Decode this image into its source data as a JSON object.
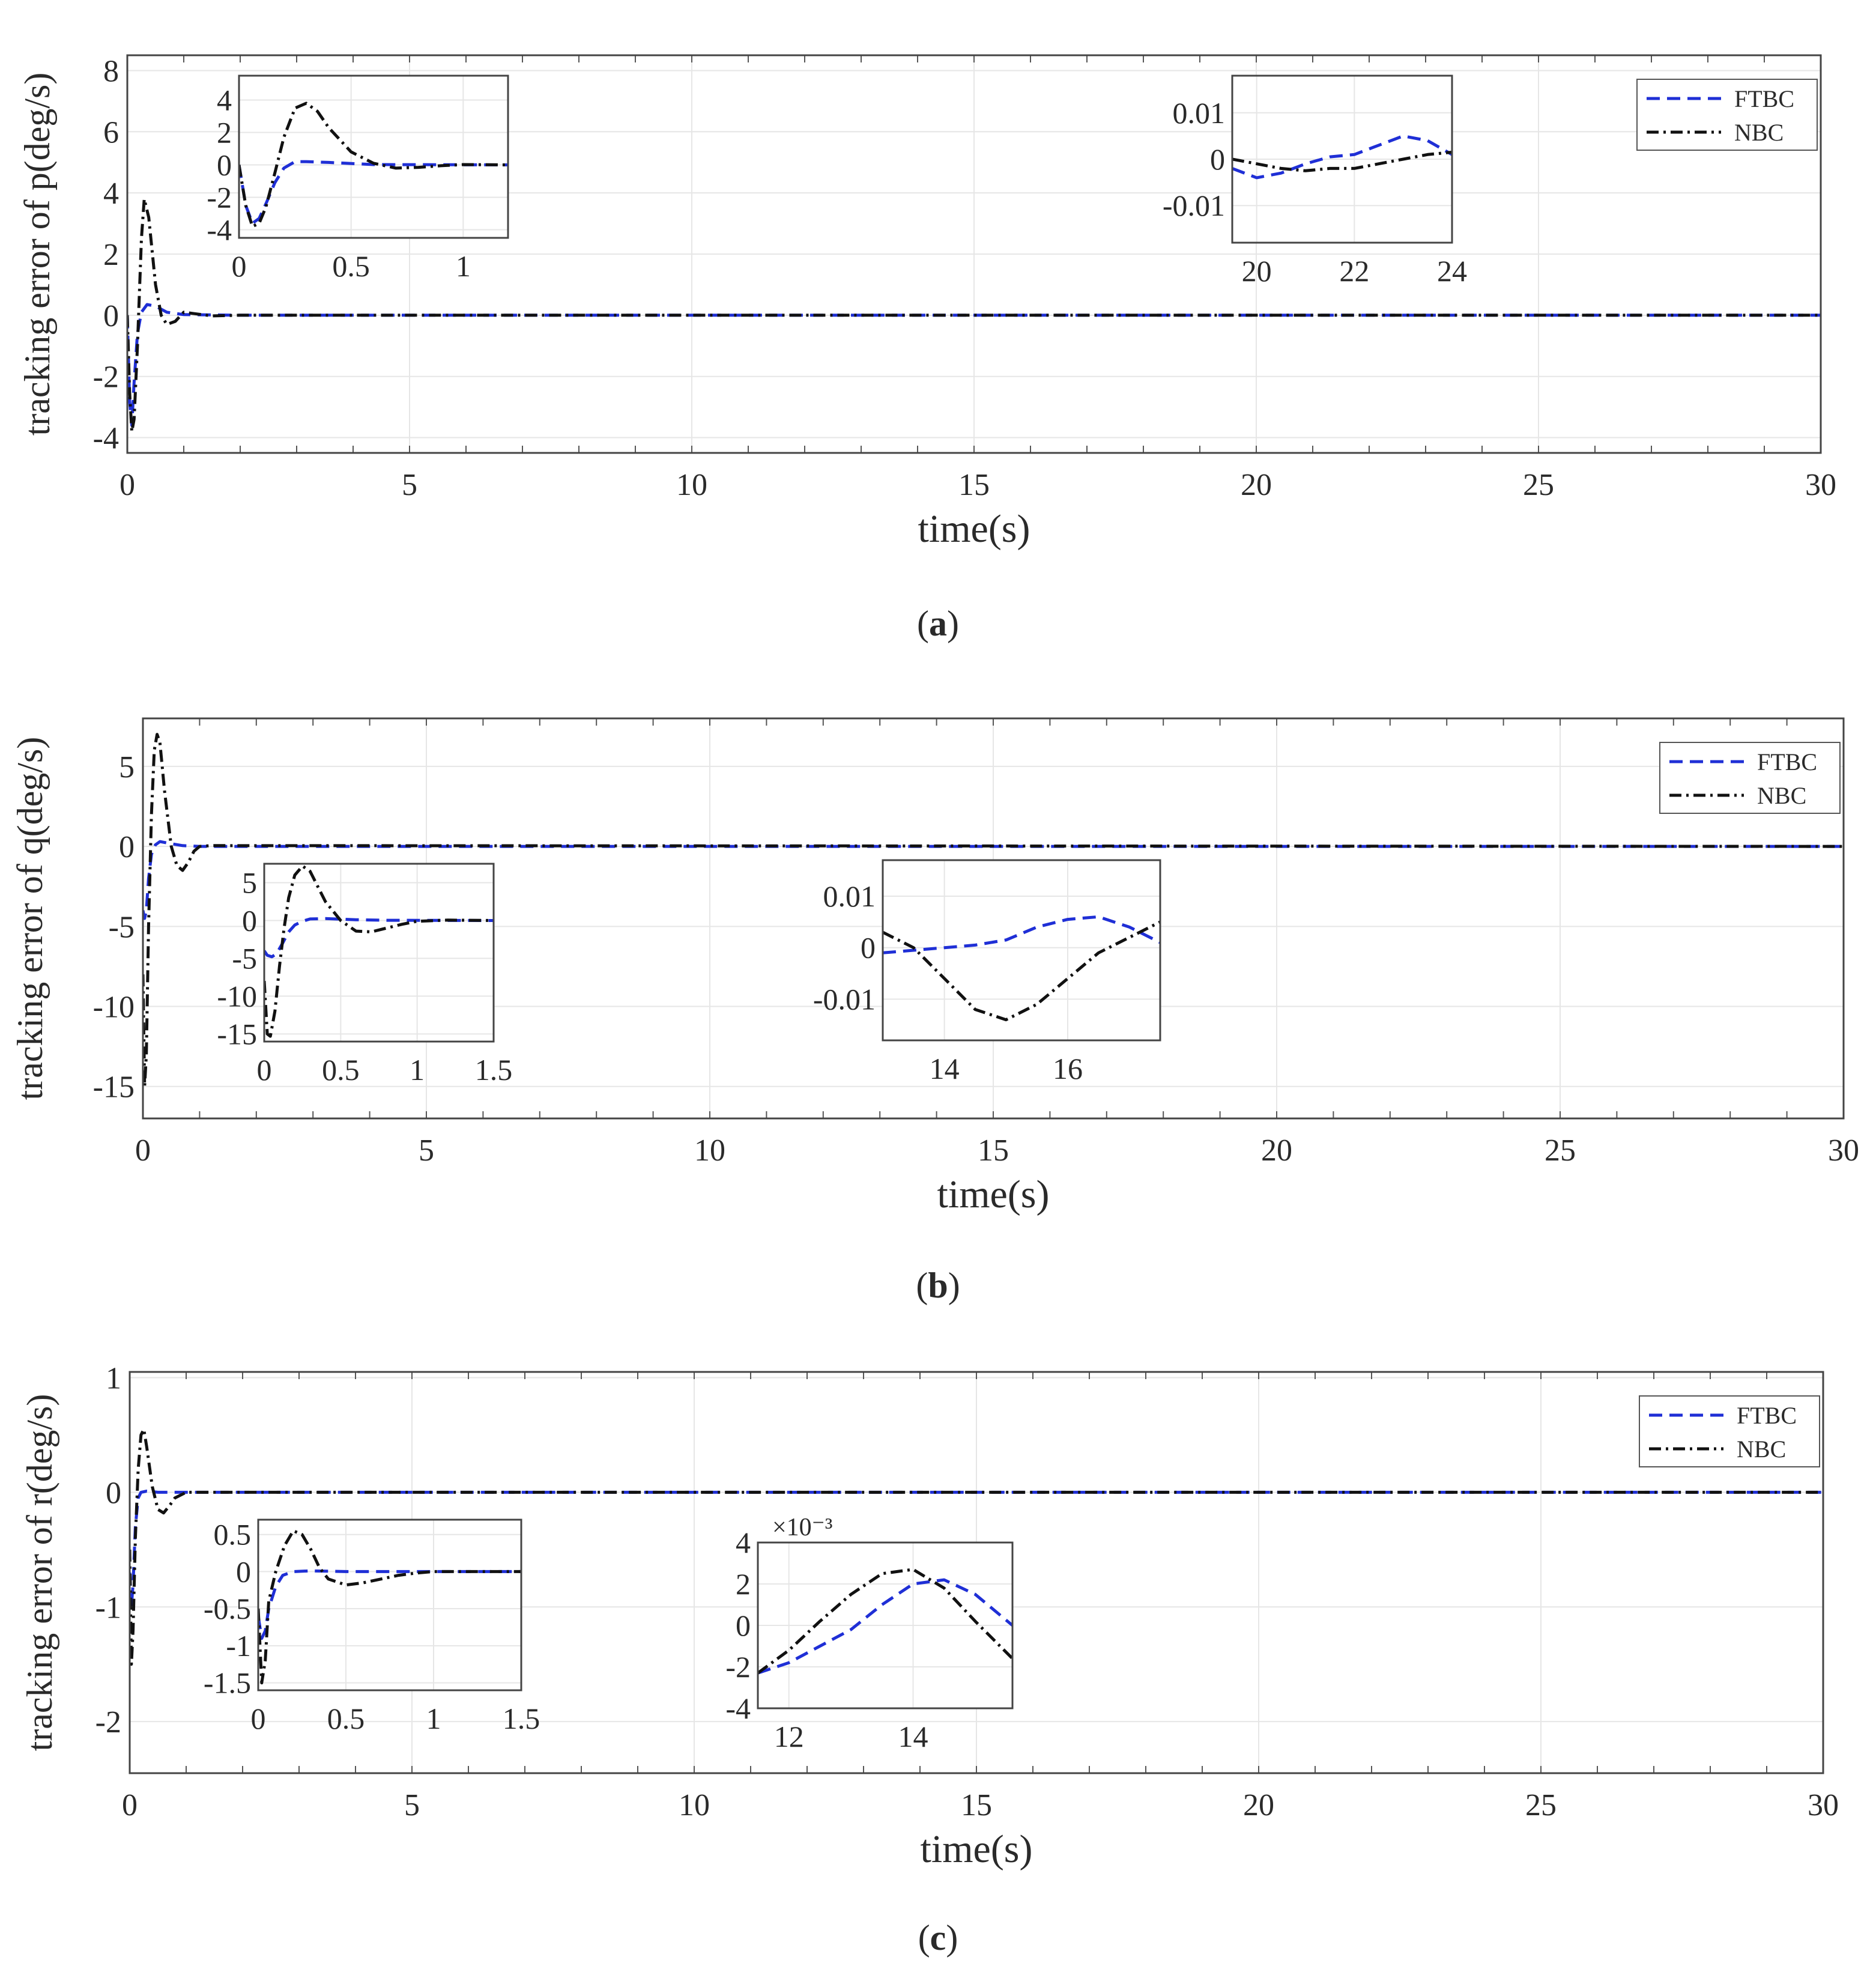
{
  "chart_data": [
    {
      "type": "line",
      "panel": "a",
      "caption": "a",
      "title": "",
      "xlabel": "time(s)",
      "ylabel": "tracking error of p(deg/s)",
      "xlim": [
        0,
        30
      ],
      "ylim": [
        -4.5,
        8.5
      ],
      "xticks": [
        0,
        5,
        10,
        15,
        20,
        25,
        30
      ],
      "yticks": [
        -4,
        -2,
        0,
        2,
        4,
        6,
        8
      ],
      "grid": true,
      "legend_position": "top-right",
      "legend": [
        "FTBC",
        "NBC"
      ],
      "series": [
        {
          "name": "FTBC",
          "color": "#1f2fd6",
          "x": [
            0,
            0.04,
            0.08,
            0.12,
            0.18,
            0.25,
            0.35,
            0.5,
            0.7,
            1.0,
            2.0,
            30
          ],
          "y": [
            0,
            -2.8,
            -3.6,
            -2.2,
            -0.6,
            0.1,
            0.35,
            0.3,
            0.1,
            0.02,
            0,
            0
          ]
        },
        {
          "name": "NBC",
          "color": "#111111",
          "x": [
            0,
            0.04,
            0.08,
            0.12,
            0.18,
            0.25,
            0.3,
            0.38,
            0.5,
            0.6,
            0.7,
            0.85,
            1.0,
            1.2,
            1.5,
            2.0,
            30
          ],
          "y": [
            0,
            -2.5,
            -3.8,
            -3.4,
            -1.0,
            2.5,
            3.8,
            3.2,
            1.0,
            0,
            -0.3,
            -0.2,
            0.1,
            0.05,
            -0.02,
            0,
            0
          ]
        }
      ],
      "insets": [
        {
          "xlim": [
            0,
            1.2
          ],
          "ylim": [
            -4.5,
            5.5
          ],
          "xticks": [
            0,
            0.5,
            1
          ],
          "yticks": [
            -4,
            -2,
            0,
            2,
            4
          ],
          "series": [
            {
              "name": "FTBC",
              "x": [
                0,
                0.03,
                0.06,
                0.09,
                0.12,
                0.16,
                0.2,
                0.25,
                0.3,
                0.4,
                0.6,
                1.2
              ],
              "y": [
                0,
                -2.5,
                -3.6,
                -3.3,
                -2.4,
                -1.1,
                -0.2,
                0.2,
                0.2,
                0.15,
                0.02,
                0
              ]
            },
            {
              "name": "NBC",
              "x": [
                0,
                0.03,
                0.06,
                0.09,
                0.12,
                0.16,
                0.2,
                0.25,
                0.3,
                0.35,
                0.4,
                0.5,
                0.6,
                0.7,
                0.8,
                0.9,
                1.0,
                1.2
              ],
              "y": [
                0,
                -2.5,
                -3.8,
                -3.6,
                -2.6,
                -0.5,
                1.7,
                3.5,
                3.8,
                3.3,
                2.3,
                0.8,
                0.1,
                -0.2,
                -0.15,
                -0.05,
                0.02,
                0
              ]
            }
          ]
        },
        {
          "xlim": [
            19.5,
            24
          ],
          "ylim": [
            -0.018,
            0.018
          ],
          "xticks": [
            20,
            22,
            24
          ],
          "yticks": [
            -0.01,
            0,
            0.01
          ],
          "series": [
            {
              "name": "FTBC",
              "x": [
                19.5,
                20,
                20.5,
                21,
                21.5,
                22,
                22.5,
                23,
                23.5,
                24
              ],
              "y": [
                -0.002,
                -0.004,
                -0.003,
                -0.001,
                0.0005,
                0.001,
                0.003,
                0.005,
                0.004,
                0.001
              ]
            },
            {
              "name": "NBC",
              "x": [
                19.5,
                20,
                20.5,
                21,
                21.5,
                22,
                22.5,
                23,
                23.5,
                24
              ],
              "y": [
                0,
                -0.001,
                -0.002,
                -0.0025,
                -0.002,
                -0.002,
                -0.001,
                0,
                0.001,
                0.0015
              ]
            }
          ]
        }
      ]
    },
    {
      "type": "line",
      "panel": "b",
      "caption": "b",
      "title": "",
      "xlabel": "time(s)",
      "ylabel": "tracking error of q(deg/s)",
      "xlim": [
        0,
        30
      ],
      "ylim": [
        -17,
        8
      ],
      "xticks": [
        0,
        5,
        10,
        15,
        20,
        25,
        30
      ],
      "yticks": [
        -15,
        -10,
        -5,
        0,
        5
      ],
      "grid": true,
      "legend_position": "top-right",
      "legend": [
        "FTBC",
        "NBC"
      ],
      "series": [
        {
          "name": "FTBC",
          "color": "#1f2fd6",
          "x": [
            0,
            0.03,
            0.06,
            0.1,
            0.15,
            0.22,
            0.3,
            0.45,
            0.7,
            1.0,
            30
          ],
          "y": [
            -4,
            -4.5,
            -4,
            -2,
            -0.5,
            0.1,
            0.3,
            0.2,
            0.05,
            0,
            0
          ]
        },
        {
          "name": "NBC",
          "color": "#111111",
          "x": [
            0,
            0.03,
            0.06,
            0.1,
            0.15,
            0.2,
            0.25,
            0.3,
            0.38,
            0.5,
            0.6,
            0.7,
            0.8,
            0.9,
            1.0,
            1.2,
            30
          ],
          "y": [
            -8,
            -15,
            -13,
            -5,
            2,
            6,
            7,
            6.5,
            3.5,
            0,
            -1.2,
            -1.5,
            -1.0,
            -0.3,
            0,
            0.05,
            0
          ]
        }
      ],
      "insets": [
        {
          "xlim": [
            0,
            1.5
          ],
          "ylim": [
            -16,
            7.5
          ],
          "xticks": [
            0,
            0.5,
            1,
            1.5
          ],
          "yticks": [
            -15,
            -10,
            -5,
            0,
            5
          ],
          "series": [
            {
              "name": "FTBC",
              "x": [
                0,
                0.02,
                0.05,
                0.08,
                0.12,
                0.16,
                0.2,
                0.25,
                0.3,
                0.4,
                0.6,
                0.8,
                1.5
              ],
              "y": [
                -4,
                -4.6,
                -4.8,
                -4.4,
                -3.0,
                -1.5,
                -0.6,
                -0.1,
                0.2,
                0.25,
                0.1,
                0.03,
                0
              ]
            },
            {
              "name": "NBC",
              "x": [
                0,
                0.02,
                0.04,
                0.07,
                0.1,
                0.13,
                0.16,
                0.2,
                0.25,
                0.3,
                0.35,
                0.4,
                0.5,
                0.6,
                0.7,
                0.8,
                0.9,
                1.0,
                1.2,
                1.5
              ],
              "y": [
                -8,
                -15,
                -15.3,
                -12,
                -6,
                -1,
                3,
                6,
                7.2,
                6.5,
                4.5,
                2.5,
                0,
                -1.4,
                -1.5,
                -1.0,
                -0.5,
                -0.1,
                0.05,
                0
              ]
            }
          ]
        },
        {
          "xlim": [
            13,
            17.5
          ],
          "ylim": [
            -0.018,
            0.017
          ],
          "xticks": [
            14,
            16
          ],
          "yticks": [
            -0.01,
            0,
            0.01
          ],
          "series": [
            {
              "name": "FTBC",
              "x": [
                13,
                13.5,
                14,
                14.5,
                15,
                15.5,
                16,
                16.5,
                17,
                17.5
              ],
              "y": [
                -0.001,
                -0.0005,
                0,
                0.0005,
                0.0015,
                0.004,
                0.0055,
                0.006,
                0.004,
                0.001
              ]
            },
            {
              "name": "NBC",
              "x": [
                13,
                13.5,
                14,
                14.5,
                15,
                15.5,
                16,
                16.5,
                17,
                17.5
              ],
              "y": [
                0.003,
                0,
                -0.006,
                -0.012,
                -0.014,
                -0.011,
                -0.006,
                -0.001,
                0.002,
                0.005
              ]
            }
          ]
        }
      ]
    },
    {
      "type": "line",
      "panel": "c",
      "caption": "c",
      "title": "",
      "xlabel": "time(s)",
      "ylabel": "tracking error of r(deg/s)",
      "xlim": [
        0,
        30
      ],
      "ylim": [
        -2.45,
        1.05
      ],
      "xticks": [
        0,
        5,
        10,
        15,
        20,
        25,
        30
      ],
      "yticks": [
        -2,
        -1,
        0,
        1
      ],
      "grid": true,
      "legend_position": "top-right",
      "legend": [
        "FTBC",
        "NBC"
      ],
      "series": [
        {
          "name": "FTBC",
          "color": "#1f2fd6",
          "x": [
            0,
            0.03,
            0.06,
            0.1,
            0.15,
            0.2,
            0.3,
            0.5,
            1.0,
            30
          ],
          "y": [
            -0.7,
            -1.0,
            -0.8,
            -0.3,
            -0.05,
            0,
            0.01,
            0,
            0,
            0
          ]
        },
        {
          "name": "NBC",
          "color": "#111111",
          "x": [
            0,
            0.03,
            0.06,
            0.1,
            0.15,
            0.2,
            0.25,
            0.3,
            0.4,
            0.5,
            0.6,
            0.7,
            0.8,
            1.0,
            1.3,
            30
          ],
          "y": [
            -0.5,
            -1.5,
            -1.2,
            -0.4,
            0.2,
            0.5,
            0.55,
            0.4,
            0.05,
            -0.15,
            -0.18,
            -0.12,
            -0.05,
            0,
            0,
            0
          ]
        }
      ],
      "insets": [
        {
          "xlim": [
            0,
            1.5
          ],
          "ylim": [
            -1.6,
            0.7
          ],
          "xticks": [
            0,
            0.5,
            1,
            1.5
          ],
          "yticks": [
            -1.5,
            -1,
            -0.5,
            0,
            0.5
          ],
          "series": [
            {
              "name": "FTBC",
              "x": [
                0,
                0.02,
                0.04,
                0.06,
                0.1,
                0.14,
                0.2,
                0.3,
                0.5,
                1.0,
                1.5
              ],
              "y": [
                -0.6,
                -0.9,
                -0.8,
                -0.5,
                -0.2,
                -0.05,
                0,
                0.01,
                0,
                0,
                0
              ]
            },
            {
              "name": "NBC",
              "x": [
                0,
                0.02,
                0.04,
                0.06,
                0.1,
                0.15,
                0.2,
                0.25,
                0.3,
                0.35,
                0.4,
                0.5,
                0.6,
                0.7,
                0.8,
                0.9,
                1.0,
                1.2,
                1.5
              ],
              "y": [
                -0.5,
                -1.5,
                -1.2,
                -0.4,
                0,
                0.35,
                0.55,
                0.5,
                0.3,
                0.05,
                -0.1,
                -0.18,
                -0.15,
                -0.1,
                -0.05,
                -0.02,
                0,
                0,
                0
              ]
            }
          ]
        },
        {
          "xlim": [
            11.5,
            15.6
          ],
          "ylim": [
            -0.004,
            0.004
          ],
          "xticks": [
            12,
            14
          ],
          "yticks": [
            -0.004,
            -0.002,
            0,
            0.002,
            0.004
          ],
          "ytick_labels": [
            "-4",
            "-2",
            "0",
            "2",
            "4"
          ],
          "exponent_label": "×10⁻³",
          "series": [
            {
              "name": "FTBC",
              "x": [
                11.5,
                12,
                12.5,
                13,
                13.5,
                14,
                14.5,
                15,
                15.6
              ],
              "y": [
                -0.0023,
                -0.0018,
                -0.001,
                -0.0002,
                0.001,
                0.002,
                0.0022,
                0.0015,
                0
              ]
            },
            {
              "name": "NBC",
              "x": [
                11.5,
                12,
                12.5,
                13,
                13.5,
                14,
                14.5,
                15,
                15.6
              ],
              "y": [
                -0.0023,
                -0.0012,
                0.0002,
                0.0015,
                0.0025,
                0.0027,
                0.0018,
                0.0002,
                -0.0016
              ]
            }
          ]
        }
      ]
    }
  ]
}
